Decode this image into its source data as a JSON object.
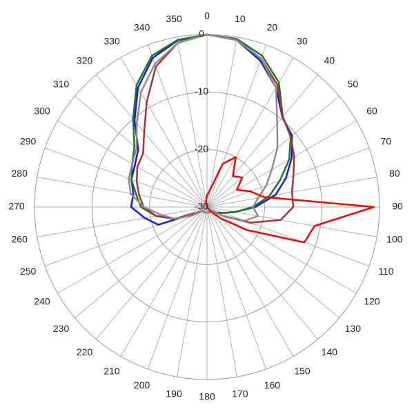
{
  "chart_data": {
    "type": "polar",
    "x": [
      0,
      10,
      20,
      30,
      40,
      50,
      60,
      70,
      80,
      90,
      100,
      110,
      120,
      130,
      140,
      150,
      160,
      170,
      180,
      190,
      200,
      210,
      220,
      230,
      240,
      250,
      260,
      270,
      280,
      290,
      300,
      310,
      320,
      330,
      340,
      350
    ],
    "xticks": [
      0,
      10,
      20,
      30,
      40,
      50,
      60,
      70,
      80,
      90,
      100,
      110,
      120,
      130,
      140,
      150,
      160,
      170,
      180,
      190,
      200,
      210,
      220,
      230,
      240,
      250,
      260,
      270,
      280,
      290,
      300,
      310,
      320,
      330,
      340,
      350
    ],
    "ylim": [
      -30,
      0
    ],
    "yticks": [
      0,
      -10,
      -20,
      -30
    ],
    "grid": true,
    "series": [
      {
        "color": "#1414ff",
        "values": [
          0,
          -0.5,
          -2.9,
          -6,
          -9.6,
          -10.7,
          -13,
          -15.4,
          -17.9,
          -21.6,
          -25,
          -27,
          -28,
          -29,
          -29,
          -29,
          -29,
          -29,
          -29,
          -29,
          -29,
          -29,
          -29,
          -29,
          -28,
          -21,
          -19,
          -16.8,
          -17,
          -16,
          -15.5,
          -14.4,
          -10.4,
          -6,
          -2.4,
          -0.6
        ]
      },
      {
        "color": "#1a7a1a",
        "values": [
          0,
          -0.3,
          -2,
          -5,
          -9.5,
          -11,
          -13.5,
          -16.5,
          -19,
          -22,
          -25,
          -27,
          -28,
          -29,
          -29,
          -29,
          -29,
          -29,
          -29,
          -29,
          -29,
          -29,
          -29,
          -29,
          -28,
          -24,
          -21,
          -18.5,
          -17.5,
          -16,
          -15,
          -13.5,
          -10,
          -5.5,
          -2,
          -0.5
        ]
      },
      {
        "color": "#a83232",
        "values": [
          0,
          -0.5,
          -2.5,
          -5.5,
          -9.5,
          -11,
          -12.5,
          -14,
          -15,
          -15,
          -17,
          -22,
          -27,
          -29,
          -29,
          -29,
          -29,
          -29,
          -29,
          -29,
          -29,
          -29,
          -29,
          -29,
          -28,
          -24,
          -21,
          -19,
          -18,
          -17,
          -16,
          -15.5,
          -13,
          -9,
          -4,
          -1
        ]
      },
      {
        "color": "#8c8c8c",
        "values": [
          0,
          -0.5,
          -2.5,
          -6,
          -11,
          -14,
          -17,
          -19,
          -21,
          -22,
          -21,
          -23,
          -27,
          -29,
          -29,
          -29,
          -29,
          -29,
          -29,
          -29,
          -29,
          -29,
          -29,
          -29,
          -27,
          -24,
          -22,
          -19,
          -16.5,
          -15.5,
          -15,
          -14,
          -11,
          -7,
          -3.5,
          -1
        ]
      },
      {
        "color": "#ff0000",
        "values": [
          -28,
          -27,
          -22,
          -20,
          -23,
          -22,
          -24,
          -22,
          -20,
          -1,
          -11,
          -12,
          -22,
          -27,
          -29,
          -30,
          -30,
          -30,
          -30,
          -30,
          -30,
          -30,
          -30,
          -30,
          -30,
          -30,
          -30,
          -30,
          -30,
          -30,
          -30,
          -30,
          -30,
          -30,
          -30,
          -29
        ]
      }
    ]
  }
}
